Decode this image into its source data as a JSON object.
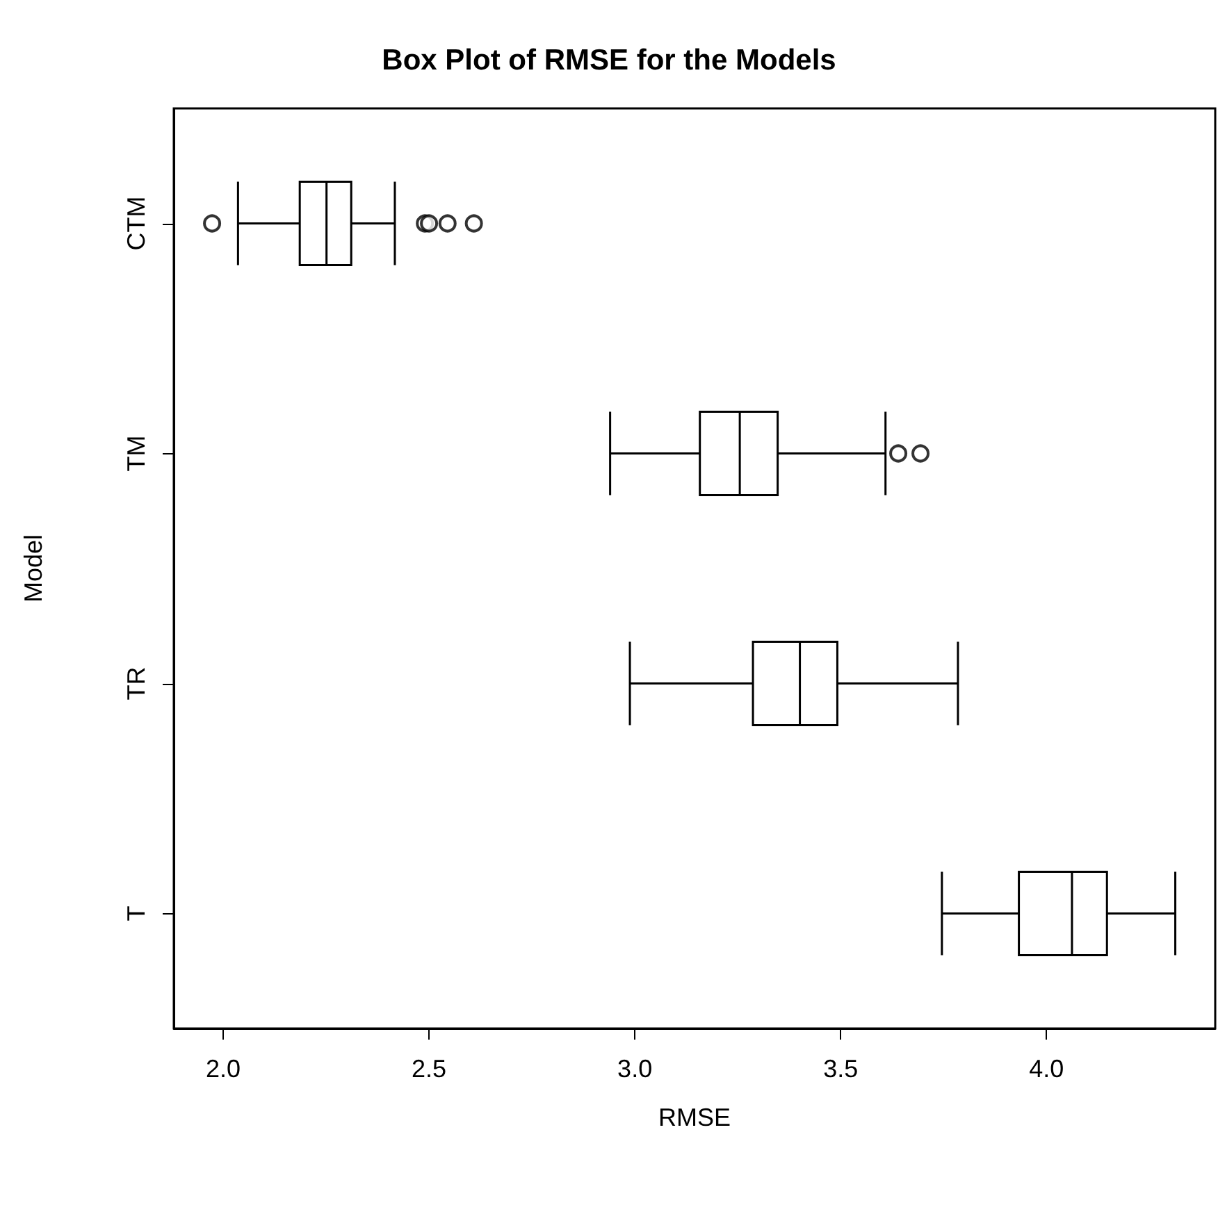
{
  "chart_data": {
    "type": "box",
    "title": "Box Plot of RMSE for the Models",
    "xlabel": "RMSE",
    "ylabel": "Model",
    "orientation": "horizontal",
    "categories": [
      "CTM",
      "TM",
      "TR",
      "T"
    ],
    "boxes": [
      {
        "low": 2.036,
        "q1": 2.186,
        "median": 2.251,
        "q3": 2.311,
        "high": 2.417,
        "outliers": [
          1.973,
          2.49,
          2.5,
          2.545,
          2.609
        ]
      },
      {
        "low": 2.94,
        "q1": 3.158,
        "median": 3.255,
        "q3": 3.347,
        "high": 3.609,
        "outliers": [
          3.64,
          3.694
        ]
      },
      {
        "low": 2.988,
        "q1": 3.287,
        "median": 3.401,
        "q3": 3.492,
        "high": 3.785
      },
      {
        "low": 3.746,
        "q1": 3.933,
        "median": 4.062,
        "q3": 4.147,
        "high": 4.313
      }
    ],
    "xlim": [
      1.88,
      4.41
    ],
    "xticks": [
      {
        "value": 2,
        "label": "2.0"
      },
      {
        "value": 2.5,
        "label": "2.5"
      },
      {
        "value": 3,
        "label": "3.0"
      },
      {
        "value": 3.5,
        "label": "3.5"
      },
      {
        "value": 4,
        "label": "4.0"
      }
    ]
  }
}
